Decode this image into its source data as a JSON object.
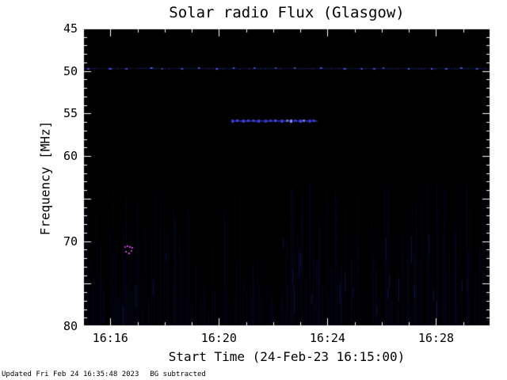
{
  "chart_data": {
    "type": "heatmap",
    "title": "Solar radio Flux (Glasgow)",
    "xlabel": "Start Time (24-Feb-23 16:15:00)",
    "ylabel": "Frequency [MHz]",
    "ylim": [
      45,
      80
    ],
    "y_axis_inverted": true,
    "x_range_min": [
      0,
      15.0
    ],
    "x_start_label": "16:15:00",
    "x_ticks": [
      {
        "min": 1,
        "label": "16:16"
      },
      {
        "min": 5,
        "label": "16:20"
      },
      {
        "min": 9,
        "label": "16:24"
      },
      {
        "min": 13,
        "label": "16:28"
      }
    ],
    "x_minor_step_min": 1,
    "y_ticks": [
      {
        "mhz": 45,
        "label": "45"
      },
      {
        "mhz": 50,
        "label": "50"
      },
      {
        "mhz": 55,
        "label": "55"
      },
      {
        "mhz": 60,
        "label": "60"
      },
      {
        "mhz": 70,
        "label": "70"
      },
      {
        "mhz": 80,
        "label": "80"
      }
    ],
    "y_major_ticks": [
      45,
      50,
      55,
      60,
      65,
      70,
      75,
      80
    ],
    "y_minor_step_mhz": 1,
    "colors": {
      "background": "#000000",
      "frame": "#ffffff",
      "noise_blue": "#1919af",
      "interference_blue": "#3c3ceb",
      "burst_blue": "#4646ff",
      "rfi_magenta": "#eb50eb"
    },
    "features": [
      {
        "kind": "noisy-hline",
        "label": "horizontal RFI interference line with periodic bright blips",
        "freq_mhz": 49.7,
        "t_start_min": 0.05,
        "t_end_min": 14.95,
        "color": "60,60,235",
        "color_bright": "95,95,255",
        "base_alpha": 0.35
      },
      {
        "kind": "band",
        "label": "bright beaded solar radio emission band",
        "freq_mhz": 55.8,
        "t_start_min": 5.45,
        "t_end_min": 8.65,
        "color": "70,70,255",
        "color_bright": "140,140,255"
      },
      {
        "kind": "dots",
        "label": "magenta RFI dot cluster",
        "color": "235,80,235",
        "points": [
          {
            "t_min": 1.52,
            "freq_mhz": 70.6
          },
          {
            "t_min": 1.6,
            "freq_mhz": 70.5
          },
          {
            "t_min": 1.68,
            "freq_mhz": 70.6
          },
          {
            "t_min": 1.78,
            "freq_mhz": 70.7
          },
          {
            "t_min": 1.56,
            "freq_mhz": 71.2
          },
          {
            "t_min": 1.66,
            "freq_mhz": 71.3
          },
          {
            "t_min": 1.76,
            "freq_mhz": 71.1
          }
        ]
      },
      {
        "kind": "stripes",
        "label": "faint blue vertical noise striping",
        "freq_range_mhz": [
          63,
          80
        ]
      }
    ]
  },
  "footer": {
    "updated": "Updated Fri Feb 24 16:35:48 2023",
    "bg_note": "BG subtracted"
  }
}
